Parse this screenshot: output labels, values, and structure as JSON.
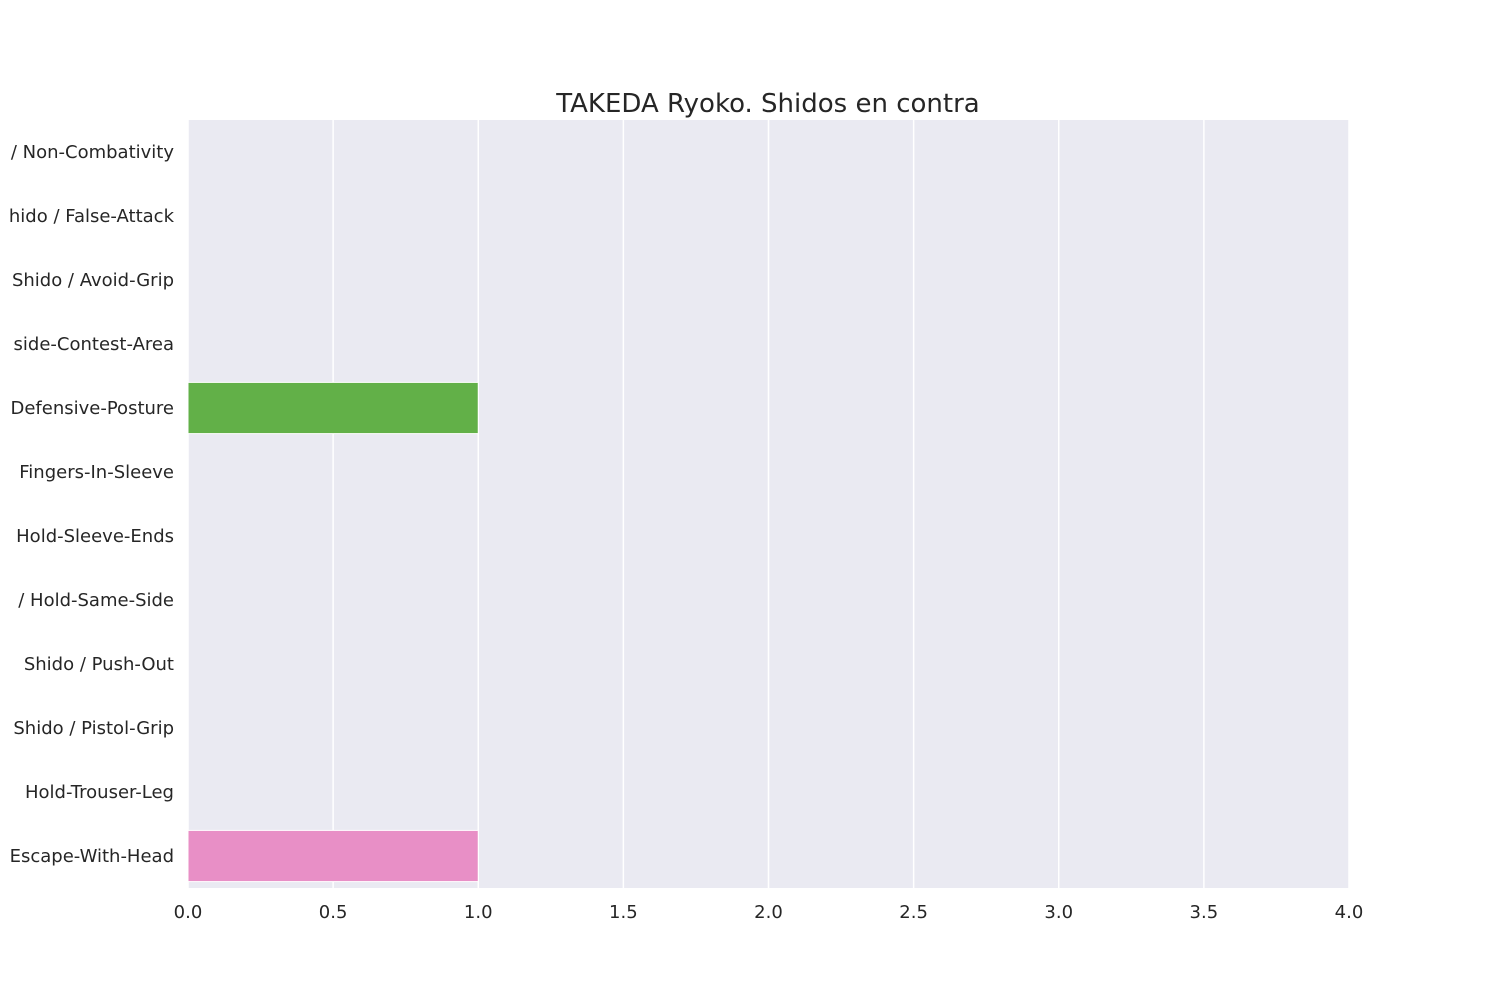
{
  "chart_data": {
    "type": "bar",
    "orientation": "horizontal",
    "title": "TAKEDA Ryoko. Shidos en contra",
    "xlabel": "",
    "ylabel": "",
    "xlim": [
      0,
      4
    ],
    "xticks": [
      "0.0",
      "0.5",
      "1.0",
      "1.5",
      "2.0",
      "2.5",
      "3.0",
      "3.5",
      "4.0"
    ],
    "grid": true,
    "legend": "none",
    "categories": [
      "/ Non-Combativity",
      "hido / False-Attack",
      "Shido / Avoid-Grip",
      "side-Contest-Area",
      "Defensive-Posture",
      "Fingers-In-Sleeve",
      "Hold-Sleeve-Ends",
      "/ Hold-Same-Side",
      "Shido / Push-Out",
      "Shido / Pistol-Grip",
      "Hold-Trouser-Leg",
      "Escape-With-Head"
    ],
    "values": [
      0,
      0,
      0,
      0,
      1,
      0,
      0,
      0,
      0,
      0,
      0,
      1
    ],
    "colors": [
      "#e58a7a",
      "#d99a45",
      "#c2a83e",
      "#a3b23a",
      "#62b048",
      "#4cb88a",
      "#48b5b0",
      "#4ab3d0",
      "#6fa5e0",
      "#a58ee6",
      "#d67fe0",
      "#e88fc6"
    ]
  },
  "style": {
    "background": "#ffffff",
    "plot_background": "#eaeaf2",
    "grid_color": "#ffffff",
    "text_color": "#262626"
  }
}
